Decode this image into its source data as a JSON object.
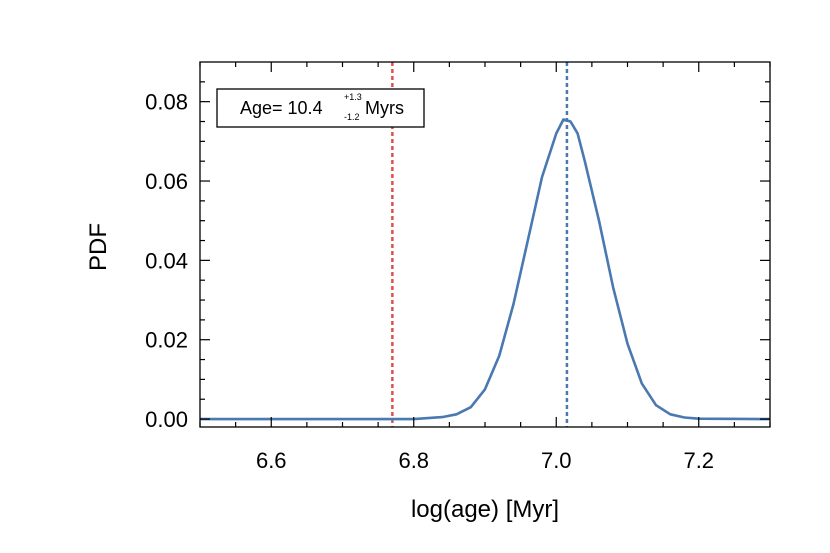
{
  "chart_data": {
    "type": "line",
    "xlabel": "log(age) [Myr]",
    "ylabel": "PDF",
    "xlim": [
      6.5,
      7.3
    ],
    "ylim": [
      -0.002,
      0.09
    ],
    "x_ticks": [
      6.6,
      6.8,
      7.0,
      7.2
    ],
    "x_tick_labels": [
      "6.6",
      "6.8",
      "7.0",
      "7.2"
    ],
    "y_ticks": [
      0.0,
      0.02,
      0.04,
      0.06,
      0.08
    ],
    "y_tick_labels": [
      "0.00",
      "0.02",
      "0.04",
      "0.06",
      "0.08"
    ],
    "grid": false,
    "series": [
      {
        "color": "#4a78b0",
        "x": [
          6.5,
          6.8,
          6.84,
          6.86,
          6.88,
          6.9,
          6.92,
          6.94,
          6.96,
          6.98,
          7.0,
          7.01,
          7.02,
          7.03,
          7.04,
          7.06,
          7.08,
          7.1,
          7.12,
          7.14,
          7.16,
          7.18,
          7.2,
          7.3
        ],
        "y": [
          0.0,
          0.0,
          0.0005,
          0.0012,
          0.003,
          0.0075,
          0.016,
          0.029,
          0.045,
          0.061,
          0.072,
          0.0755,
          0.075,
          0.072,
          0.065,
          0.05,
          0.033,
          0.019,
          0.009,
          0.0035,
          0.0012,
          0.0004,
          0.0001,
          0.0
        ]
      }
    ],
    "vlines": [
      {
        "x": 6.77,
        "color": "#d9534f",
        "style": "dotted"
      },
      {
        "x": 7.015,
        "color": "#4a78b0",
        "style": "dotted"
      }
    ],
    "annotation": {
      "prefix": "Age= 10.4",
      "sup": "+1.3",
      "sub": "-1.2",
      "suffix": " Myrs"
    }
  }
}
